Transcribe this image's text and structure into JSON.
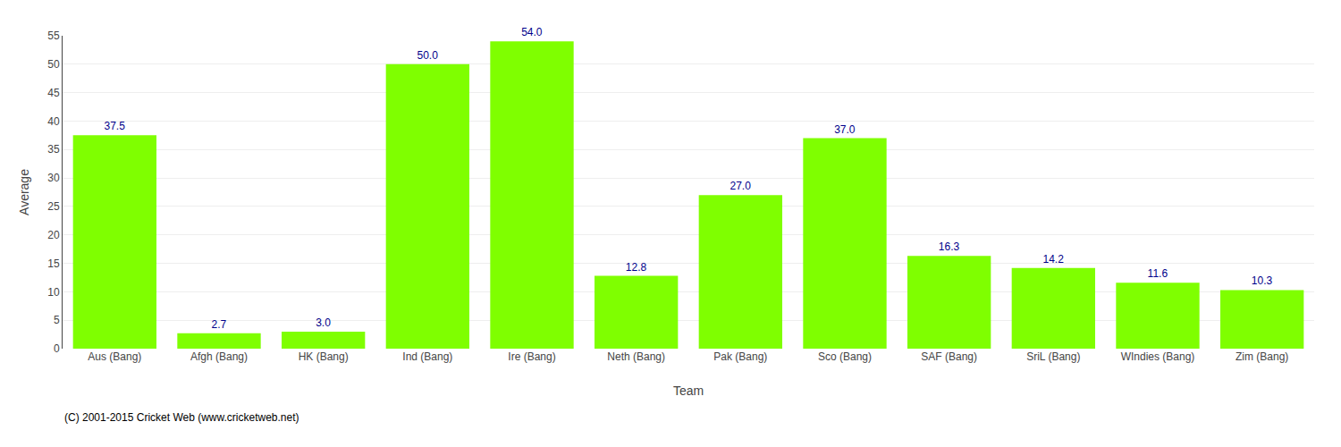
{
  "chart_data": {
    "type": "bar",
    "categories": [
      "Aus (Bang)",
      "Afgh (Bang)",
      "HK (Bang)",
      "Ind (Bang)",
      "Ire (Bang)",
      "Neth (Bang)",
      "Pak (Bang)",
      "Sco (Bang)",
      "SAF (Bang)",
      "SriL (Bang)",
      "WIndies (Bang)",
      "Zim (Bang)"
    ],
    "values": [
      37.5,
      2.7,
      3.0,
      50.0,
      54.0,
      12.8,
      27.0,
      37.0,
      16.3,
      14.2,
      11.6,
      10.3
    ],
    "value_labels": [
      "37.5",
      "2.7",
      "3.0",
      "50.0",
      "54.0",
      "12.8",
      "27.0",
      "37.0",
      "16.3",
      "14.2",
      "11.6",
      "10.3"
    ],
    "data_labels": true,
    "color": "#7FFF00",
    "xlabel": "Team",
    "ylabel": "Average",
    "ylim": [
      0,
      55
    ],
    "yticks": [
      0,
      5,
      10,
      15,
      20,
      25,
      30,
      35,
      40,
      45,
      50,
      55
    ],
    "grid": true,
    "annotations": [
      "(C) 2001-2015 Cricket Web (www.cricketweb.net)"
    ]
  }
}
